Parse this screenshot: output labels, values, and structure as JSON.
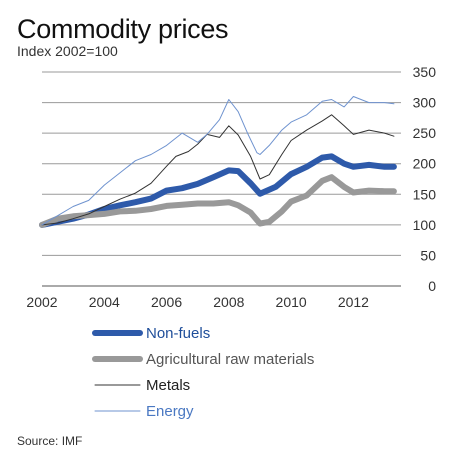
{
  "title": "Commodity prices",
  "subtitle": "Index 2002=100",
  "source": "Source: IMF",
  "chart_data": {
    "type": "line",
    "title": "Commodity prices",
    "subtitle": "Index 2002=100",
    "ylim": [
      0,
      350
    ],
    "xlim": [
      2002,
      2013.4
    ],
    "yticks": [
      0,
      50,
      100,
      150,
      200,
      250,
      300,
      350
    ],
    "xticks": [
      2002,
      2004,
      2006,
      2008,
      2010,
      2012
    ],
    "y_axis_side": "right",
    "grid": true,
    "legend_position": "bottom-left",
    "series": [
      {
        "name": "Non-fuels",
        "color": "#2e5aaa",
        "width": 6,
        "x": [
          2002,
          2002.5,
          2003,
          2003.5,
          2004,
          2004.5,
          2005,
          2005.5,
          2006,
          2006.5,
          2007,
          2007.5,
          2008,
          2008.3,
          2008.7,
          2009,
          2009.5,
          2010,
          2010.5,
          2011,
          2011.3,
          2011.7,
          2012,
          2012.5,
          2013,
          2013.3
        ],
        "y": [
          100,
          105,
          110,
          117,
          126,
          132,
          137,
          143,
          156,
          160,
          167,
          178,
          189,
          188,
          168,
          151,
          162,
          183,
          195,
          210,
          212,
          200,
          195,
          198,
          195,
          195
        ]
      },
      {
        "name": "Agricultural raw materials",
        "color": "#999999",
        "width": 6,
        "x": [
          2002,
          2002.5,
          2003,
          2003.5,
          2004,
          2004.5,
          2005,
          2005.5,
          2006,
          2006.5,
          2007,
          2007.5,
          2008,
          2008.3,
          2008.7,
          2009,
          2009.3,
          2009.7,
          2010,
          2010.5,
          2011,
          2011.3,
          2011.7,
          2012,
          2012.5,
          2013,
          2013.3
        ],
        "y": [
          100,
          110,
          114,
          116,
          118,
          122,
          123,
          126,
          131,
          133,
          135,
          135,
          137,
          132,
          120,
          102,
          105,
          122,
          138,
          148,
          172,
          178,
          162,
          153,
          156,
          155,
          155
        ]
      },
      {
        "name": "Metals",
        "color": "#333333",
        "width": 1,
        "x": [
          2002,
          2002.5,
          2003,
          2003.5,
          2004,
          2004.5,
          2005,
          2005.5,
          2006,
          2006.3,
          2006.7,
          2007,
          2007.3,
          2007.7,
          2008,
          2008.3,
          2008.7,
          2009,
          2009.3,
          2009.7,
          2010,
          2010.5,
          2011,
          2011.3,
          2011.7,
          2012,
          2012.5,
          2013,
          2013.3
        ],
        "y": [
          100,
          103,
          110,
          118,
          130,
          142,
          152,
          168,
          196,
          212,
          220,
          232,
          248,
          243,
          262,
          247,
          212,
          175,
          182,
          215,
          238,
          255,
          270,
          280,
          262,
          248,
          255,
          250,
          245
        ]
      },
      {
        "name": "Energy",
        "color": "#6f93cf",
        "width": 1,
        "x": [
          2002,
          2002.5,
          2003,
          2003.5,
          2004,
          2004.5,
          2005,
          2005.5,
          2006,
          2006.5,
          2007,
          2007.3,
          2007.7,
          2008,
          2008.3,
          2008.6,
          2008.9,
          2009,
          2009.3,
          2009.7,
          2010,
          2010.5,
          2011,
          2011.3,
          2011.7,
          2012,
          2012.5,
          2013,
          2013.3
        ],
        "y": [
          100,
          115,
          130,
          140,
          165,
          185,
          205,
          215,
          230,
          250,
          235,
          248,
          272,
          305,
          285,
          250,
          218,
          215,
          230,
          255,
          268,
          280,
          302,
          305,
          293,
          310,
          300,
          300,
          298
        ]
      }
    ]
  }
}
